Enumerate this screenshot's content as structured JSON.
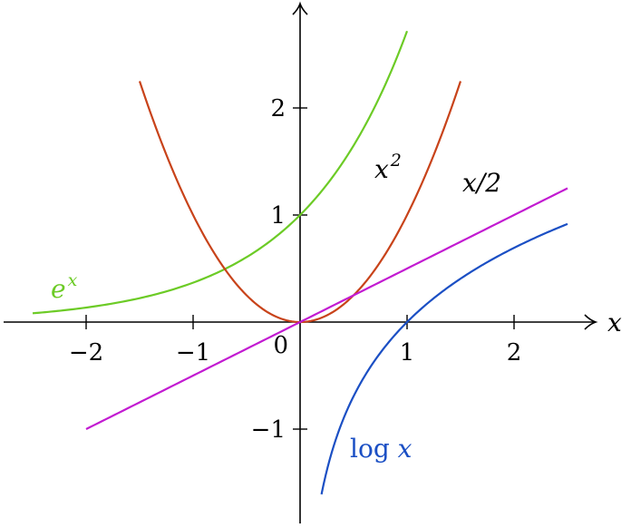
{
  "chart_data": {
    "type": "line",
    "title": "",
    "xlabel": "x",
    "ylabel": "",
    "origin_label": "0",
    "xlim": [
      -2.8,
      2.8
    ],
    "ylim": [
      -1.85,
      2.95
    ],
    "grid": false,
    "x_ticks": [
      {
        "value": -2,
        "label": "−2"
      },
      {
        "value": -1,
        "label": "−1"
      },
      {
        "value": 1,
        "label": "1"
      },
      {
        "value": 2,
        "label": "2"
      }
    ],
    "y_ticks": [
      {
        "value": -1,
        "label": "−1"
      },
      {
        "value": 1,
        "label": "1"
      },
      {
        "value": 2,
        "label": "2"
      }
    ],
    "series": [
      {
        "name": "e^x",
        "label_base": "e",
        "label_sup": "x",
        "color": "#6ccb26",
        "function": "exp",
        "x": [
          -2.5,
          -2.0,
          -1.5,
          -1.0,
          -0.5,
          0.0,
          0.5,
          1.0
        ],
        "y": [
          0.082,
          0.135,
          0.223,
          0.368,
          0.607,
          1.0,
          1.649,
          2.718
        ]
      },
      {
        "name": "x^2",
        "label_base": "x",
        "label_sup": "2",
        "color": "#c8431a",
        "function": "square",
        "x": [
          -1.5,
          -1.0,
          -0.5,
          0.0,
          0.5,
          1.0,
          1.5
        ],
        "y": [
          2.25,
          1.0,
          0.25,
          0.0,
          0.25,
          1.0,
          2.25
        ]
      },
      {
        "name": "x/2",
        "label_base": "x/2",
        "label_sup": "",
        "color": "#c21ad1",
        "function": "half",
        "x": [
          -2.0,
          -1.0,
          0.0,
          1.0,
          2.0,
          2.5
        ],
        "y": [
          -1.0,
          -0.5,
          0.0,
          0.5,
          1.0,
          1.25
        ]
      },
      {
        "name": "log x",
        "label_base": "log x",
        "label_sup": "",
        "color": "#1b4fc4",
        "function": "log",
        "x": [
          0.2,
          0.5,
          1.0,
          1.5,
          2.0,
          2.5
        ],
        "y": [
          -1.609,
          -0.693,
          0.0,
          0.405,
          0.693,
          0.916
        ]
      }
    ]
  }
}
